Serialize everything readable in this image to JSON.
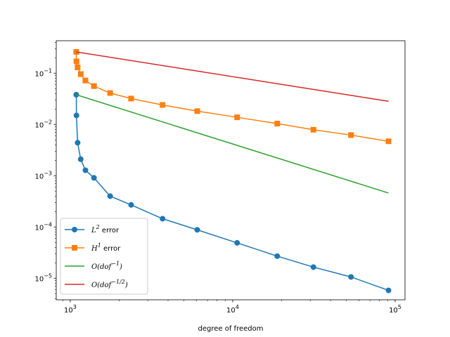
{
  "chart_data": {
    "type": "line",
    "title": "",
    "xlabel": "degree of freedom",
    "ylabel": "",
    "xscale": "log",
    "yscale": "log",
    "xlim": [
      820,
      115000
    ],
    "ylim": [
      3.8e-06,
      0.43
    ],
    "x_ticks": [
      {
        "value": 1000,
        "base": "10",
        "exp": "3"
      },
      {
        "value": 10000,
        "base": "10",
        "exp": "4"
      },
      {
        "value": 100000,
        "base": "10",
        "exp": "5"
      }
    ],
    "y_ticks": [
      {
        "value": 1e-05,
        "base": "10",
        "exp": "−5"
      },
      {
        "value": 0.0001,
        "base": "10",
        "exp": "−4"
      },
      {
        "value": 0.001,
        "base": "10",
        "exp": "−3"
      },
      {
        "value": 0.01,
        "base": "10",
        "exp": "−2"
      },
      {
        "value": 0.1,
        "base": "10",
        "exp": "−1"
      }
    ],
    "grid": false,
    "legend_position": "lower-left",
    "series": [
      {
        "name": "L2 error",
        "label_main": "L",
        "label_sup": "2",
        "label_suffix": " error",
        "color": "#1f77b4",
        "marker": "circle",
        "x": [
          1089,
          1092,
          1110,
          1160,
          1240,
          1400,
          1760,
          2370,
          3700,
          6050,
          10650,
          18800,
          31400,
          53500,
          91000
        ],
        "y": [
          0.038,
          0.015,
          0.0044,
          0.0021,
          0.00128,
          0.00091,
          0.0004,
          0.00027,
          0.000145,
          8.8e-05,
          4.9e-05,
          2.7e-05,
          1.65e-05,
          1.06e-05,
          5.8e-06
        ]
      },
      {
        "name": "H1 error",
        "label_main": "H",
        "label_sup": "1",
        "label_suffix": " error",
        "color": "#ff7f0e",
        "marker": "square",
        "x": [
          1089,
          1092,
          1110,
          1160,
          1240,
          1400,
          1760,
          2370,
          3700,
          6050,
          10650,
          18800,
          31400,
          53500,
          91000
        ],
        "y": [
          0.26,
          0.17,
          0.13,
          0.096,
          0.072,
          0.056,
          0.041,
          0.032,
          0.024,
          0.0182,
          0.0138,
          0.0104,
          0.0079,
          0.0062,
          0.0047
        ]
      },
      {
        "name": "O(dof^-1)",
        "label_main": "O(dof",
        "label_sup": "−1",
        "label_suffix": ")",
        "color": "#2ca02c",
        "marker": "none",
        "x": [
          1089,
          91000
        ],
        "y": [
          0.038,
          0.00046
        ]
      },
      {
        "name": "O(dof^-1/2)",
        "label_main": "O(dof",
        "label_sup": "−1/2",
        "label_suffix": ")",
        "color": "#d62728",
        "marker": "none",
        "x": [
          1089,
          91000
        ],
        "y": [
          0.26,
          0.0283
        ]
      }
    ]
  }
}
